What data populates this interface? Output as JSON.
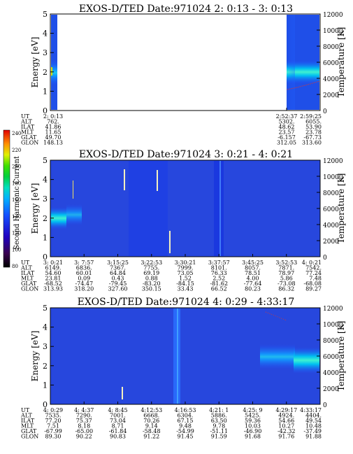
{
  "figure": {
    "colorbar": {
      "label": "Second Harmonic Current",
      "ticks": [
        "80",
        "100",
        "120",
        "140",
        "160",
        "180",
        "200",
        "220",
        "240"
      ]
    }
  },
  "chart_data": [
    {
      "type": "heatmap",
      "title": "EXOS-D/TED   Date:971024  2: 0:13 - 3: 0:13",
      "ylabel": "Energy [eV]",
      "ylabel_right": "Temperature [K]",
      "ylim": [
        0,
        5
      ],
      "ylim_right": [
        0,
        12000
      ],
      "yticks": [
        "0",
        "1",
        "2",
        "3",
        "4",
        "5"
      ],
      "yticks_right": [
        "0",
        "2000",
        "4000",
        "6000",
        "8000",
        "10000",
        "12000"
      ],
      "row_labels": [
        "UT",
        "ALT",
        "ILAT",
        "MLT",
        "GLAT",
        "GLON"
      ],
      "columns": [
        {
          "UT": "2: 0:13",
          "ALT": "762.",
          "ILAT": "41.86",
          "MLT": "11.65",
          "GLAT": "49.70",
          "GLON": "148.13"
        },
        {
          "UT": "2:52:37",
          "ALT": "5302.",
          "ILAT": "48.62",
          "MLT": "23.57",
          "GLAT": "-6.157",
          "GLON": "312.05"
        },
        {
          "UT": "2:59:25",
          "ALT": "6055.",
          "ILAT": "53.90",
          "MLT": "23.78",
          "GLAT": "-67.73",
          "GLON": "313.60"
        }
      ]
    },
    {
      "type": "heatmap",
      "title": "EXOS-D/TED   Date:971024  3: 0:21 - 4: 0:21",
      "ylabel": "Energy [eV]",
      "ylabel_right": "Temperature [K]",
      "ylim": [
        0,
        5
      ],
      "ylim_right": [
        0,
        12000
      ],
      "yticks": [
        "0",
        "1",
        "2",
        "3",
        "4",
        "5"
      ],
      "yticks_right": [
        "0",
        "2000",
        "4000",
        "6000",
        "8000",
        "10000",
        "12000"
      ],
      "row_labels": [
        "UT",
        "ALT",
        "ILAT",
        "MLT",
        "GLAT",
        "GLON"
      ],
      "columns": [
        {
          "UT": "3: 0:21",
          "ALT": "6149.",
          "ILAT": "54.60",
          "MLT": "23.81",
          "GLAT": "-68.52",
          "GLON": "313.93"
        },
        {
          "UT": "3: 7:57",
          "ALT": "6836.",
          "ILAT": "60.01",
          "MLT": "0.09",
          "GLAT": "-74.47",
          "GLON": "318.20"
        },
        {
          "UT": "3:15:25",
          "ALT": "7367.",
          "ILAT": "64.84",
          "MLT": "0.43",
          "GLAT": "-79.45",
          "GLON": "327.60"
        },
        {
          "UT": "3:22:53",
          "ALT": "7755.",
          "ILAT": "69.19",
          "MLT": "0.88",
          "GLAT": "-83.20",
          "GLON": "350.15"
        },
        {
          "UT": "3:30:21",
          "ALT": "7999.",
          "ILAT": "73.05",
          "MLT": "1.52",
          "GLAT": "-84.15",
          "GLON": "33.43"
        },
        {
          "UT": "3:37:57",
          "ALT": "8101.",
          "ILAT": "76.33",
          "MLT": "2.52",
          "GLAT": "-81.62",
          "GLON": "66.52"
        },
        {
          "UT": "3:45:25",
          "ALT": "8057.",
          "ILAT": "78.51",
          "MLT": "4.00",
          "GLAT": "-77.64",
          "GLON": "80.23"
        },
        {
          "UT": "3:52:53",
          "ALT": "7871.",
          "ILAT": "78.97",
          "MLT": "5.86",
          "GLAT": "-73.08",
          "GLON": "86.32"
        },
        {
          "UT": "4: 0:21",
          "ALT": "7542.",
          "ILAT": "77.24",
          "MLT": "7.48",
          "GLAT": "-68.08",
          "GLON": "89.27"
        }
      ]
    },
    {
      "type": "heatmap",
      "title": "EXOS-D/TED   Date:971024  4: 0:29 - 4:33:17",
      "ylabel": "Energy [eV]",
      "ylabel_right": "Temperature [K]",
      "ylim": [
        0,
        5
      ],
      "ylim_right": [
        0,
        12000
      ],
      "yticks": [
        "0",
        "1",
        "2",
        "3",
        "4",
        "5"
      ],
      "yticks_right": [
        "0",
        "2000",
        "4000",
        "6000",
        "8000",
        "10000",
        "12000"
      ],
      "row_labels": [
        "UT",
        "ALT",
        "ILAT",
        "MLT",
        "GLAT",
        "GLON"
      ],
      "columns": [
        {
          "UT": "4: 0:29",
          "ALT": "7535.",
          "ILAT": "77.20",
          "MLT": "7.51",
          "GLAT": "-67.99",
          "GLON": "89.30"
        },
        {
          "UT": "4: 4:37",
          "ALT": "7290.",
          "ILAT": "75.37",
          "MLT": "8.18",
          "GLAT": "-65.00",
          "GLON": "90.22"
        },
        {
          "UT": "4: 8:45",
          "ALT": "7001.",
          "ILAT": "73.04",
          "MLT": "8.71",
          "GLAT": "-61.84",
          "GLON": "90.83"
        },
        {
          "UT": "4:12:53",
          "ALT": "6668.",
          "ILAT": "70.26",
          "MLT": "9.14",
          "GLAT": "-58.48",
          "GLON": "91.22"
        },
        {
          "UT": "4:16:53",
          "ALT": "6304.",
          "ILAT": "67.15",
          "MLT": "9.48",
          "GLAT": "-54.99",
          "GLON": "91.45"
        },
        {
          "UT": "4:21: 1",
          "ALT": "5886.",
          "ILAT": "63.50",
          "MLT": "9.78",
          "GLAT": "-51.11",
          "GLON": "91.59"
        },
        {
          "UT": "4:25: 9",
          "ALT": "5425.",
          "ILAT": "59.36",
          "MLT": "10.03",
          "GLAT": "-46.90",
          "GLON": "91.68"
        },
        {
          "UT": "4:29:17",
          "ALT": "4924.",
          "ILAT": "54.66",
          "MLT": "10.27",
          "GLAT": "-42.32",
          "GLON": "91.76"
        },
        {
          "UT": "4:33:17",
          "ALT": "4404.",
          "ILAT": "49.54",
          "MLT": "10.48",
          "GLAT": "-37.49",
          "GLON": "91.88"
        }
      ]
    }
  ]
}
